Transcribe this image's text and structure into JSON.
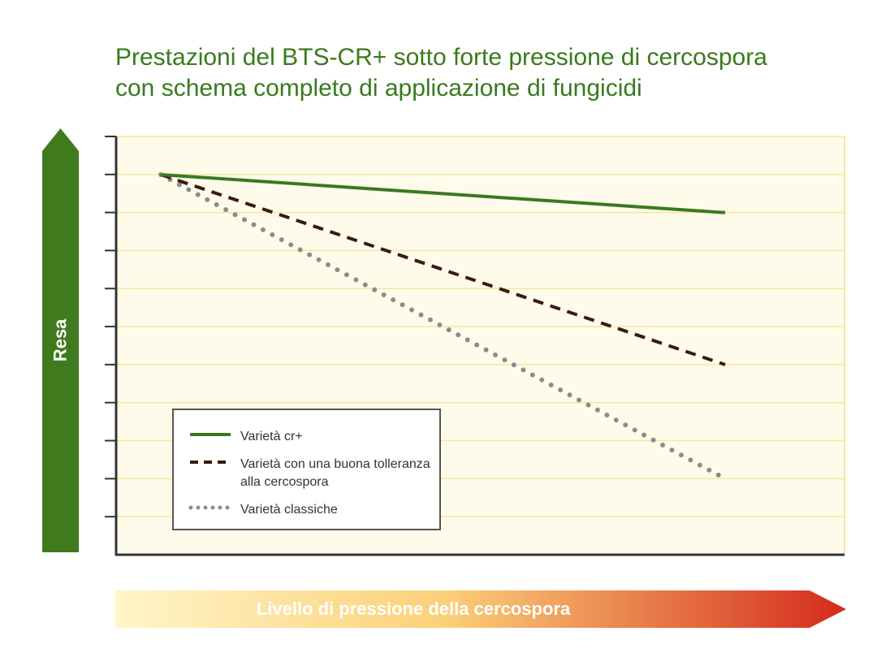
{
  "title": {
    "line1": "Prestazioni del BTS-CR+ sotto forte pressione di cercospora",
    "line2": "con schema completo di applicazione di fungicidi"
  },
  "colors": {
    "title": "#3a7a1e",
    "y_arrow": "#3f7a1f",
    "plot_background": "#fffbea",
    "gridline": "#f3e8a0",
    "x_arrow_start": "#fff6c8",
    "x_arrow_end": "#d42a1c"
  },
  "chart_data": {
    "type": "line",
    "title": "Prestazioni del BTS-CR+ sotto forte pressione di cercospora con schema completo di applicazione di fungicidi",
    "xlabel": "Livello di pressione della cercospora",
    "ylabel": "Resa",
    "x_tick_labels": [],
    "y_tick_labels": [],
    "y_tick_count": 11,
    "xlim": [
      0,
      1
    ],
    "ylim": [
      0,
      10
    ],
    "grid": true,
    "legend_position": "bottom-left",
    "series": [
      {
        "name": "Varietà cr+",
        "style": "solid",
        "color": "#3a7a1e",
        "x": [
          0,
          1
        ],
        "y": [
          10,
          9
        ]
      },
      {
        "name": "Varietà con una buona tolleranza alla cercospora",
        "style": "dashed",
        "color": "#3b1a10",
        "x": [
          0,
          1
        ],
        "y": [
          10,
          5
        ]
      },
      {
        "name": "Varietà classiche",
        "style": "dotted",
        "color": "#8c8c8c",
        "x": [
          0,
          1
        ],
        "y": [
          10,
          2
        ]
      }
    ]
  },
  "legend": {
    "items": [
      {
        "label": "Varietà cr+"
      },
      {
        "label": "Varietà con una buona tolleranza alla cercospora"
      },
      {
        "label": "Varietà classiche"
      }
    ]
  }
}
